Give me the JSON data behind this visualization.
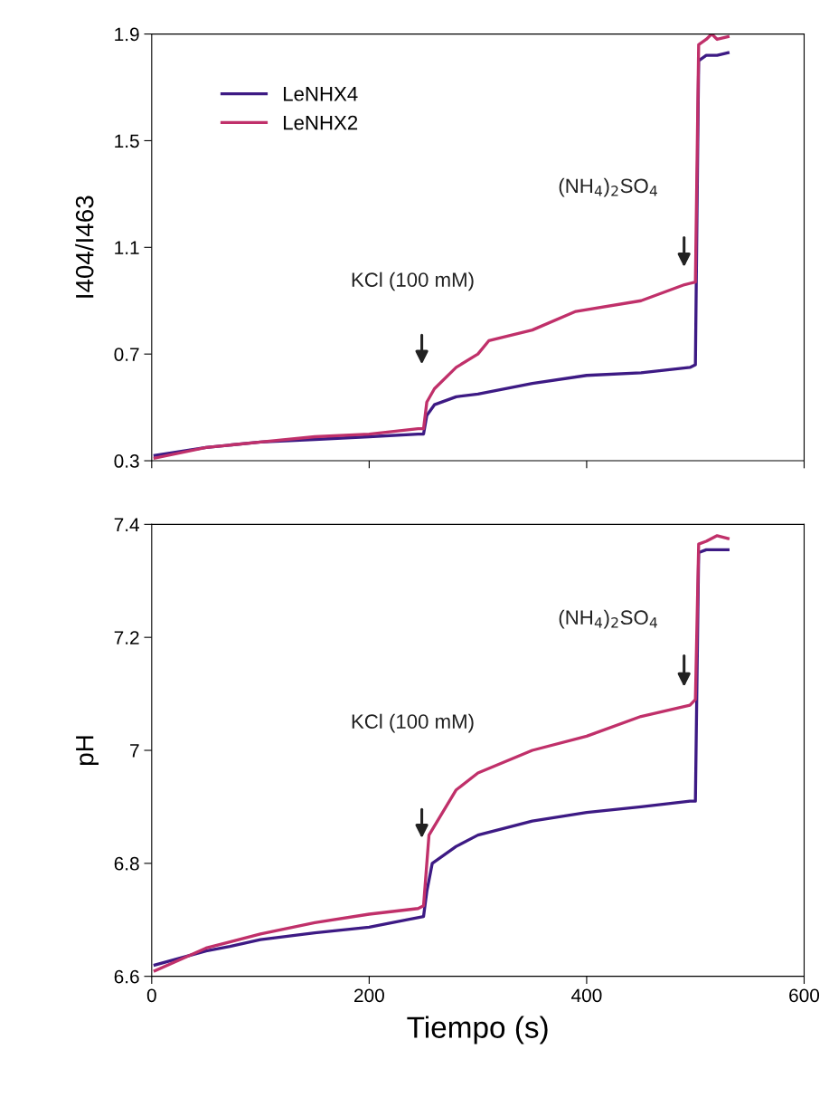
{
  "chart_data": [
    {
      "type": "line",
      "ylabel": "I404/I463",
      "xlim": [
        0,
        600
      ],
      "ylim": [
        0.3,
        1.9
      ],
      "xticks": [
        {
          "value": 0,
          "label": null
        },
        {
          "value": 200,
          "label": null
        },
        {
          "value": 400,
          "label": null
        },
        {
          "value": 600,
          "label": null
        }
      ],
      "yticks": [
        0.3,
        0.7,
        1.1,
        1.5,
        1.9
      ],
      "tick_labels": "y",
      "legend": "top left",
      "grid": false,
      "series": [
        {
          "name": "LeNHX4",
          "color": "#3d1a84",
          "x": [
            3,
            50,
            100,
            150,
            200,
            245,
            250,
            253,
            260,
            280,
            300,
            350,
            400,
            450,
            495,
            500,
            503,
            510,
            520,
            530
          ],
          "values": [
            0.32,
            0.35,
            0.37,
            0.38,
            0.39,
            0.4,
            0.4,
            0.47,
            0.51,
            0.54,
            0.55,
            0.59,
            0.62,
            0.63,
            0.65,
            0.66,
            1.8,
            1.82,
            1.82,
            1.83
          ]
        },
        {
          "name": "LeNHX2",
          "color": "#c0306a",
          "x": [
            3,
            50,
            100,
            150,
            200,
            245,
            250,
            253,
            260,
            280,
            300,
            310,
            350,
            390,
            450,
            490,
            500,
            503,
            510,
            515,
            520,
            530
          ],
          "values": [
            0.31,
            0.35,
            0.37,
            0.39,
            0.4,
            0.42,
            0.42,
            0.52,
            0.57,
            0.65,
            0.7,
            0.75,
            0.79,
            0.86,
            0.9,
            0.96,
            0.97,
            1.86,
            1.88,
            1.9,
            1.88,
            1.89
          ]
        }
      ],
      "annotations": [
        "KCl (100 mM)",
        "(NH$_{4}$)$_{2}$SO$_{4}$"
      ]
    },
    {
      "type": "line",
      "ylabel": "pH",
      "xlabel": "Tiempo (s)",
      "xlim": [
        0,
        600
      ],
      "ylim": [
        6.6,
        7.4
      ],
      "xticks": [
        0,
        200,
        400,
        600
      ],
      "yticks": [
        6.6,
        6.8,
        {
          "value": 7.0,
          "label": "7"
        },
        7.2,
        7.4
      ],
      "legend": false,
      "grid": false,
      "series": [
        {
          "color": "#3d1a84",
          "x": [
            3,
            50,
            72,
            100,
            150,
            200,
            250,
            253,
            258,
            280,
            300,
            350,
            400,
            450,
            495,
            500,
            503,
            510,
            520,
            530
          ],
          "values": [
            6.62,
            6.645,
            6.653,
            6.665,
            6.677,
            6.687,
            6.706,
            6.75,
            6.8,
            6.83,
            6.85,
            6.875,
            6.89,
            6.9,
            6.91,
            6.91,
            7.35,
            7.355,
            7.355,
            7.355
          ]
        },
        {
          "color": "#c0306a",
          "x": [
            3,
            50,
            100,
            150,
            200,
            245,
            250,
            253,
            255,
            280,
            300,
            350,
            400,
            450,
            495,
            500,
            503,
            510,
            520,
            530
          ],
          "values": [
            6.61,
            6.65,
            6.675,
            6.695,
            6.71,
            6.72,
            6.725,
            6.8,
            6.85,
            6.93,
            6.96,
            7.0,
            7.025,
            7.06,
            7.08,
            7.09,
            7.365,
            7.37,
            7.38,
            7.375
          ]
        }
      ],
      "annotations": [
        "KCl (100 mM)",
        "(NH$_{4}$)$_{2}$SO$_{4}$"
      ]
    }
  ]
}
